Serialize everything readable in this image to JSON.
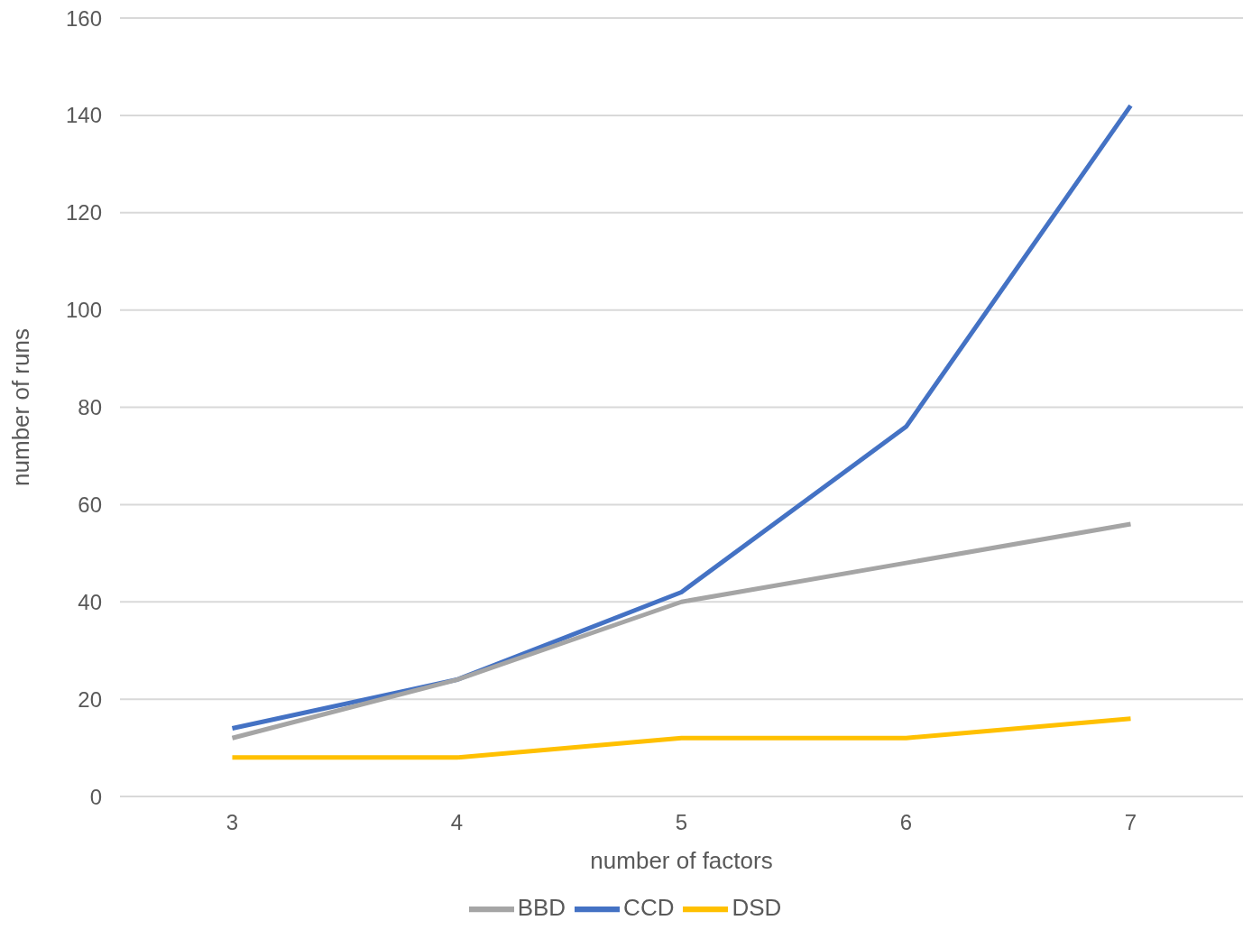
{
  "chart_data": {
    "type": "line",
    "xlabel": "number of factors",
    "ylabel": "number of runs",
    "categories": [
      "3",
      "4",
      "5",
      "6",
      "7"
    ],
    "series": [
      {
        "name": "CCD",
        "color": "#4472c4",
        "values": [
          14,
          24,
          42,
          76,
          142
        ]
      },
      {
        "name": "BBD",
        "color": "#a5a5a5",
        "values": [
          12,
          24,
          40,
          48,
          56
        ]
      },
      {
        "name": "DSD",
        "color": "#ffc000",
        "values": [
          8,
          8,
          12,
          12,
          16
        ]
      }
    ],
    "ylim": [
      0,
      160
    ],
    "yticks": [
      0,
      20,
      40,
      60,
      80,
      100,
      120,
      140,
      160
    ],
    "grid": "y",
    "legend": "bottom"
  }
}
